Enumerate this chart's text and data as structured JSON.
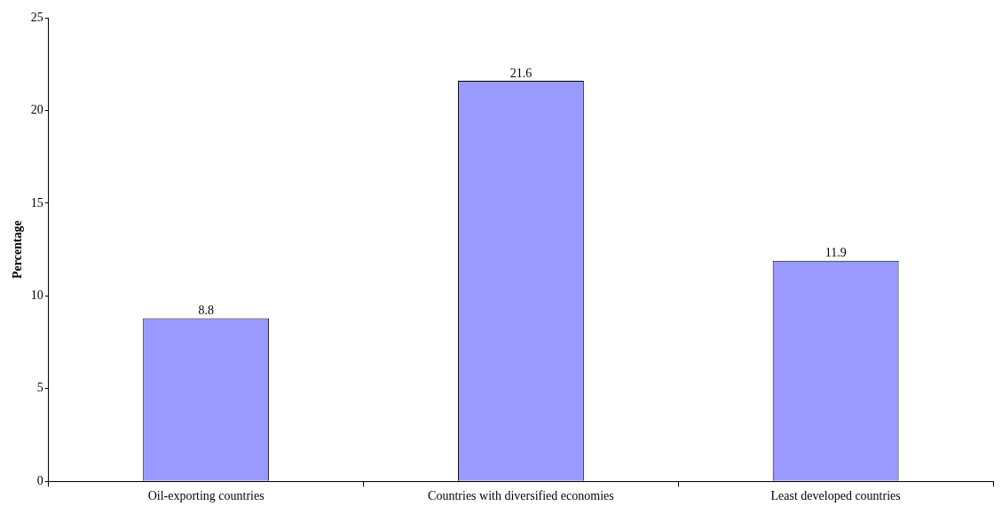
{
  "chart_data": {
    "type": "bar",
    "ylabel": "Percentage",
    "categories": [
      "Oil-exporting countries",
      "Countries with diversified economies",
      "Least developed countries"
    ],
    "values": [
      8.8,
      21.6,
      11.9
    ],
    "color": "#9999ff",
    "ylim": [
      0,
      25
    ],
    "yticks": [
      0,
      5,
      10,
      15,
      20,
      25
    ],
    "data_labels": true
  }
}
